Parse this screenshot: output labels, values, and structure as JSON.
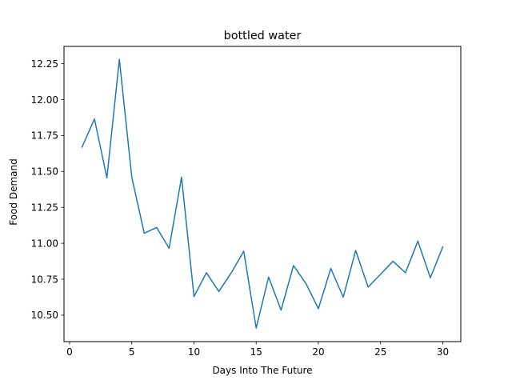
{
  "chart_data": {
    "type": "line",
    "title": "bottled water",
    "xlabel": "Days Into The Future",
    "ylabel": "Food Demand",
    "xlim": [
      -0.45,
      31.45
    ],
    "ylim": [
      10.316,
      12.37
    ],
    "xticks": [
      0,
      5,
      10,
      15,
      20,
      25,
      30
    ],
    "xtick_labels": [
      "0",
      "5",
      "10",
      "15",
      "20",
      "25",
      "30"
    ],
    "yticks": [
      10.5,
      10.75,
      11.0,
      11.25,
      11.5,
      11.75,
      12.0,
      12.25
    ],
    "ytick_labels": [
      "10.50",
      "10.75",
      "11.00",
      "11.25",
      "11.50",
      "11.75",
      "12.00",
      "12.25"
    ],
    "grid": false,
    "legend": "none",
    "series": [
      {
        "color": "#1f77b4",
        "x": [
          1,
          2,
          3,
          4,
          5,
          6,
          7,
          8,
          9,
          10,
          11,
          12,
          13,
          14,
          15,
          16,
          17,
          18,
          19,
          20,
          21,
          22,
          23,
          24,
          25,
          26,
          27,
          28,
          29,
          30
        ],
        "y": [
          11.67,
          11.865,
          11.455,
          12.28,
          11.46,
          11.07,
          11.11,
          10.965,
          11.46,
          10.63,
          10.795,
          10.665,
          10.795,
          10.945,
          10.41,
          10.765,
          10.535,
          10.845,
          10.72,
          10.545,
          10.825,
          10.625,
          10.95,
          10.695,
          10.785,
          10.875,
          10.795,
          11.015,
          10.76,
          10.975
        ]
      }
    ]
  }
}
